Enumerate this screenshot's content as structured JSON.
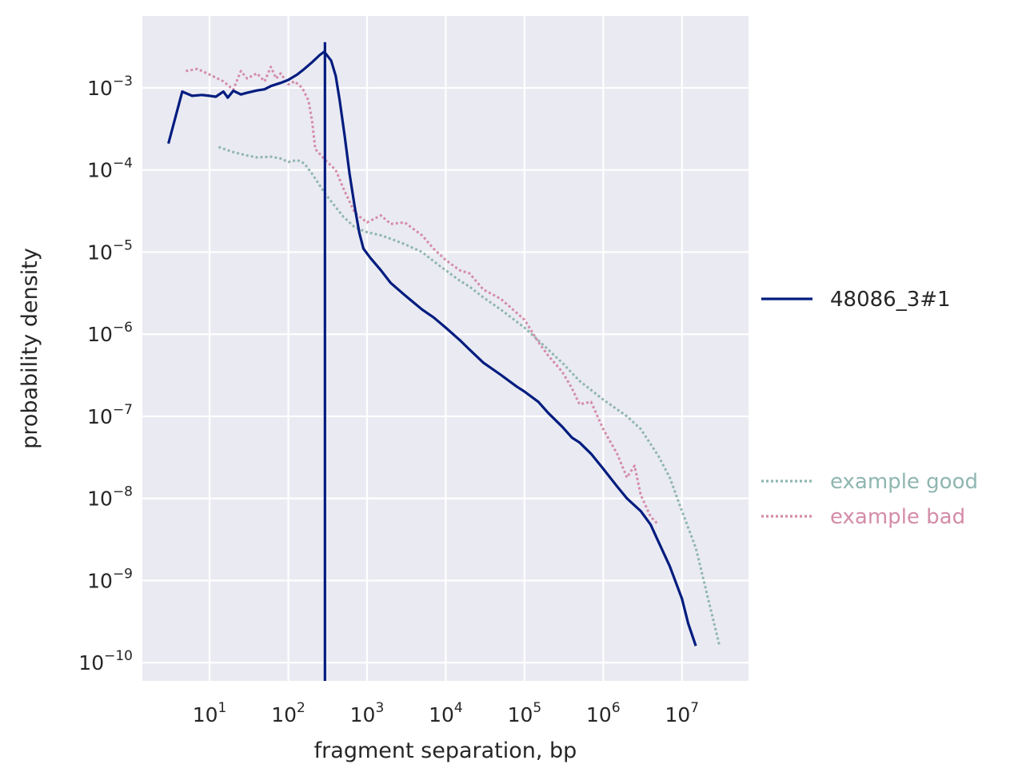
{
  "chart_data": {
    "type": "line",
    "title": "",
    "xlabel": "fragment separation, bp",
    "ylabel": "probability density",
    "x_scale": "log",
    "y_scale": "log",
    "xlim": [
      1.4,
      70000000
    ],
    "ylim": [
      6e-11,
      0.0075
    ],
    "x_ticks": [
      {
        "value": 10,
        "base": "10",
        "exp": "1"
      },
      {
        "value": 100,
        "base": "10",
        "exp": "2"
      },
      {
        "value": 1000,
        "base": "10",
        "exp": "3"
      },
      {
        "value": 10000,
        "base": "10",
        "exp": "4"
      },
      {
        "value": 100000,
        "base": "10",
        "exp": "5"
      },
      {
        "value": 1000000,
        "base": "10",
        "exp": "6"
      },
      {
        "value": 10000000,
        "base": "10",
        "exp": "7"
      }
    ],
    "y_ticks": [
      {
        "value": 0.001,
        "base": "10",
        "exp": "−3"
      },
      {
        "value": 0.0001,
        "base": "10",
        "exp": "−4"
      },
      {
        "value": 1e-05,
        "base": "10",
        "exp": "−5"
      },
      {
        "value": 1e-06,
        "base": "10",
        "exp": "−6"
      },
      {
        "value": 1e-07,
        "base": "10",
        "exp": "−7"
      },
      {
        "value": 1e-08,
        "base": "10",
        "exp": "−8"
      },
      {
        "value": 1e-09,
        "base": "10",
        "exp": "−9"
      },
      {
        "value": 1e-10,
        "base": "10",
        "exp": "−10"
      }
    ],
    "grid": true,
    "background": "#eaeaf2",
    "legend_placement": "right",
    "series": [
      {
        "name": "48086_3#1",
        "style": "solid",
        "color": "#001c7f",
        "points": [
          [
            3,
            0.00021
          ],
          [
            4.5,
            0.0009
          ],
          [
            6,
            0.0008
          ],
          [
            8,
            0.00082
          ],
          [
            10,
            0.0008
          ],
          [
            12,
            0.00078
          ],
          [
            15,
            0.0009
          ],
          [
            17,
            0.00076
          ],
          [
            20,
            0.00092
          ],
          [
            25,
            0.00083
          ],
          [
            30,
            0.00087
          ],
          [
            40,
            0.00093
          ],
          [
            50,
            0.00096
          ],
          [
            60,
            0.00105
          ],
          [
            80,
            0.00115
          ],
          [
            100,
            0.00125
          ],
          [
            130,
            0.00145
          ],
          [
            160,
            0.0017
          ],
          [
            200,
            0.00205
          ],
          [
            250,
            0.0025
          ],
          [
            285,
            0.00275
          ],
          [
            300,
            0.0026
          ],
          [
            350,
            0.00215
          ],
          [
            400,
            0.0014
          ],
          [
            450,
            0.0007
          ],
          [
            520,
            0.00026
          ],
          [
            600,
            9e-05
          ],
          [
            700,
            3.5e-05
          ],
          [
            800,
            1.7e-05
          ],
          [
            900,
            1.1e-05
          ],
          [
            1100,
            8.5e-06
          ],
          [
            1500,
            6e-06
          ],
          [
            2000,
            4.2e-06
          ],
          [
            3000,
            3e-06
          ],
          [
            5000,
            2e-06
          ],
          [
            7000,
            1.6e-06
          ],
          [
            10000,
            1.2e-06
          ],
          [
            15000,
            8.5e-07
          ],
          [
            20000,
            6.5e-07
          ],
          [
            30000,
            4.5e-07
          ],
          [
            50000,
            3.2e-07
          ],
          [
            80000,
            2.3e-07
          ],
          [
            100000,
            2e-07
          ],
          [
            150000,
            1.5e-07
          ],
          [
            200000,
            1.1e-07
          ],
          [
            300000,
            7.5e-08
          ],
          [
            400000,
            5.5e-08
          ],
          [
            500000,
            4.8e-08
          ],
          [
            700000,
            3.5e-08
          ],
          [
            1000000,
            2.3e-08
          ],
          [
            1500000,
            1.4e-08
          ],
          [
            2000000,
            1e-08
          ],
          [
            3000000,
            7e-09
          ],
          [
            4000000,
            4.8e-09
          ],
          [
            5000000,
            3e-09
          ],
          [
            7000000,
            1.5e-09
          ],
          [
            10000000,
            6e-10
          ],
          [
            12000000,
            3e-10
          ],
          [
            15000000,
            1.6e-10
          ]
        ],
        "vline_x": 292
      },
      {
        "name": "example good",
        "style": "dotted",
        "color": "#8fb6b0",
        "points": [
          [
            13,
            0.00019
          ],
          [
            20,
            0.000165
          ],
          [
            30,
            0.00015
          ],
          [
            40,
            0.000142
          ],
          [
            60,
            0.000145
          ],
          [
            80,
            0.000138
          ],
          [
            100,
            0.000125
          ],
          [
            130,
            0.000132
          ],
          [
            160,
            0.00012
          ],
          [
            200,
            9e-05
          ],
          [
            300,
            5e-05
          ],
          [
            500,
            2.7e-05
          ],
          [
            700,
            2e-05
          ],
          [
            1000,
            1.75e-05
          ],
          [
            1500,
            1.6e-05
          ],
          [
            2000,
            1.45e-05
          ],
          [
            3000,
            1.25e-05
          ],
          [
            5000,
            1e-05
          ],
          [
            8000,
            7e-06
          ],
          [
            10000,
            6e-06
          ],
          [
            15000,
            4.5e-06
          ],
          [
            20000,
            3.8e-06
          ],
          [
            30000,
            2.8e-06
          ],
          [
            50000,
            2e-06
          ],
          [
            100000,
            1.2e-06
          ],
          [
            200000,
            6.5e-07
          ],
          [
            300000,
            4.5e-07
          ],
          [
            500000,
            2.7e-07
          ],
          [
            1000000,
            1.6e-07
          ],
          [
            2000000,
            1e-07
          ],
          [
            3000000,
            7e-08
          ],
          [
            5000000,
            3.3e-08
          ],
          [
            7000000,
            1.8e-08
          ],
          [
            10000000,
            7e-09
          ],
          [
            15000000,
            2.5e-09
          ],
          [
            20000000,
            8e-10
          ],
          [
            30000000,
            1.6e-10
          ]
        ]
      },
      {
        "name": "example bad",
        "style": "dotted",
        "color": "#d48ca8",
        "points": [
          [
            5,
            0.0016
          ],
          [
            7,
            0.0017
          ],
          [
            10,
            0.00145
          ],
          [
            15,
            0.0012
          ],
          [
            20,
            0.00095
          ],
          [
            25,
            0.0016
          ],
          [
            30,
            0.0013
          ],
          [
            40,
            0.0015
          ],
          [
            50,
            0.0012
          ],
          [
            60,
            0.0018
          ],
          [
            70,
            0.0013
          ],
          [
            80,
            0.0015
          ],
          [
            100,
            0.0011
          ],
          [
            120,
            0.0012
          ],
          [
            150,
            0.001
          ],
          [
            180,
            0.0007
          ],
          [
            200,
            0.0004
          ],
          [
            220,
            0.00018
          ],
          [
            300,
            0.00013
          ],
          [
            400,
            0.0001
          ],
          [
            500,
            6e-05
          ],
          [
            700,
            3e-05
          ],
          [
            1000,
            2.3e-05
          ],
          [
            1500,
            2.8e-05
          ],
          [
            2000,
            2.2e-05
          ],
          [
            3000,
            2.3e-05
          ],
          [
            5000,
            1.6e-05
          ],
          [
            7000,
            1.1e-05
          ],
          [
            10000,
            8e-06
          ],
          [
            15000,
            6e-06
          ],
          [
            20000,
            5.5e-06
          ],
          [
            30000,
            3.5e-06
          ],
          [
            50000,
            2.7e-06
          ],
          [
            100000,
            1.5e-06
          ],
          [
            150000,
            8e-07
          ],
          [
            200000,
            5.5e-07
          ],
          [
            300000,
            3.5e-07
          ],
          [
            400000,
            2.2e-07
          ],
          [
            500000,
            1.4e-07
          ],
          [
            700000,
            1.5e-07
          ],
          [
            1000000,
            7e-08
          ],
          [
            1500000,
            3.5e-08
          ],
          [
            2000000,
            1.8e-08
          ],
          [
            2500000,
            2.5e-08
          ],
          [
            3000000,
            1.1e-08
          ],
          [
            4000000,
            6e-09
          ],
          [
            5000000,
            4.8e-09
          ]
        ]
      }
    ]
  }
}
